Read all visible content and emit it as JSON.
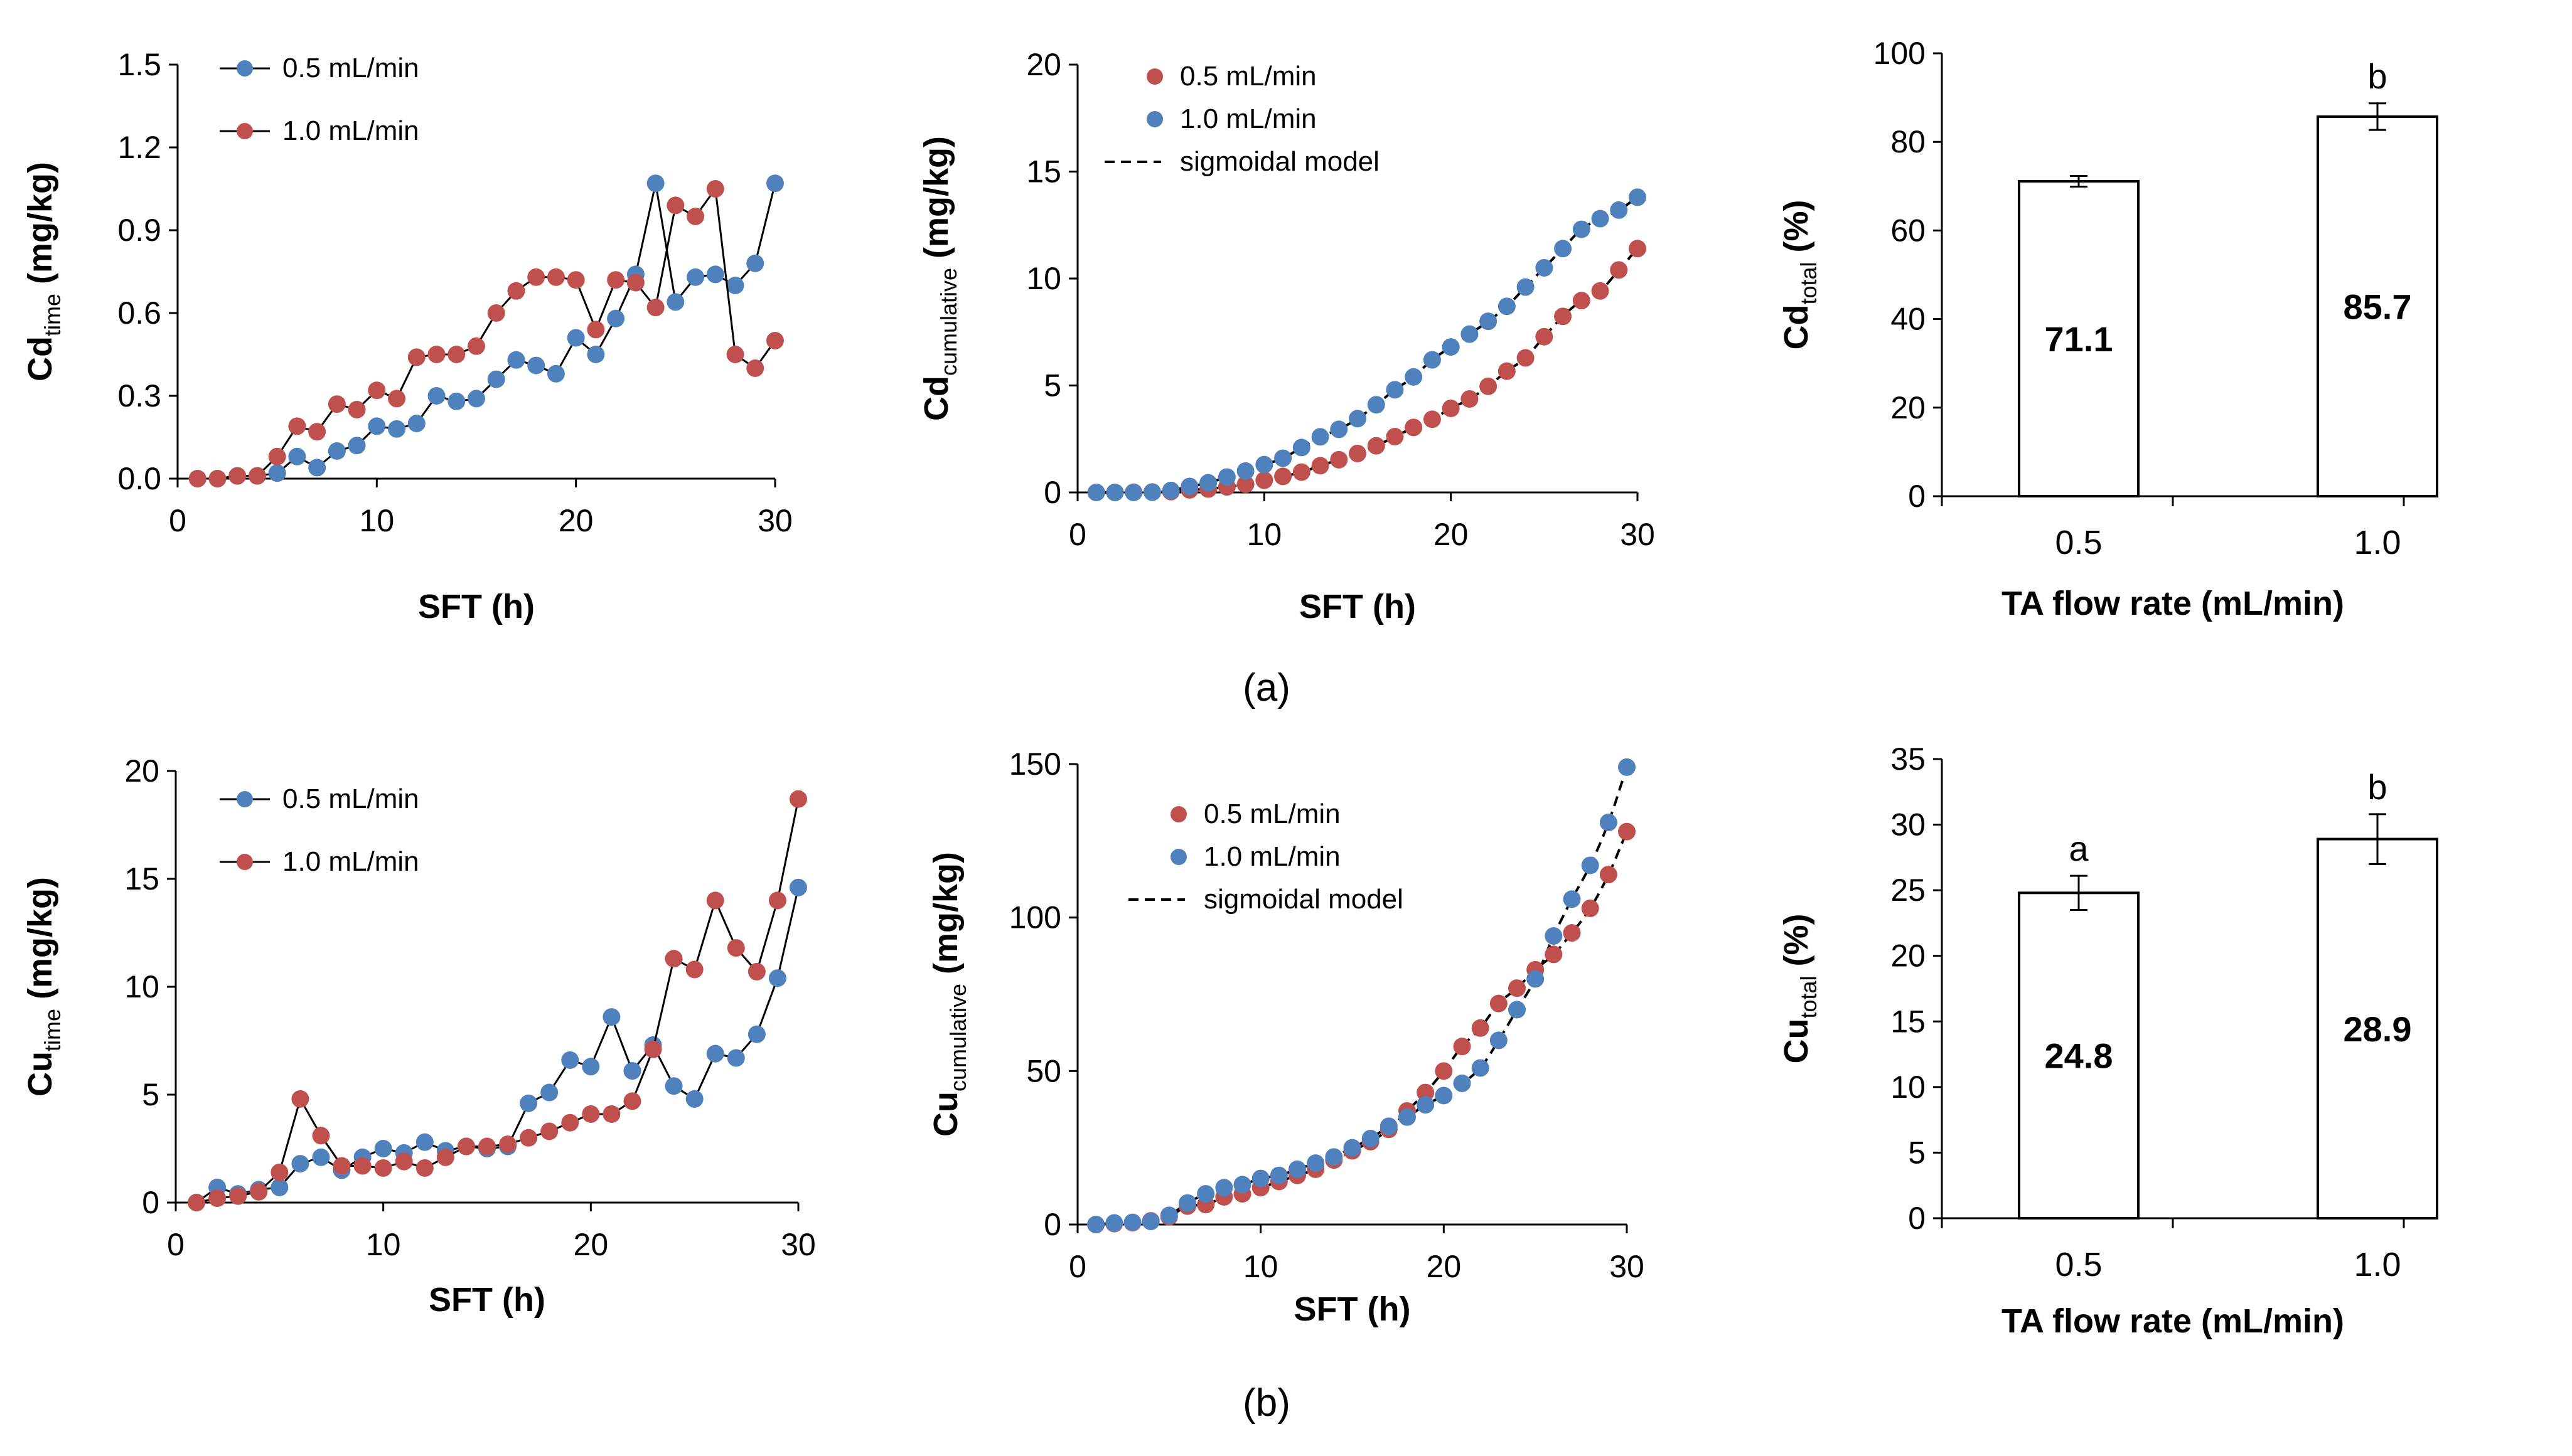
{
  "captions": {
    "a": "(a)",
    "b": "(b)"
  },
  "colors": {
    "s05": "#4F81BD",
    "s10": "#C0504D",
    "axis": "#000000",
    "bar": "#ffffff",
    "model": "#000000"
  },
  "chart_data": [
    {
      "id": "cd_time",
      "type": "line",
      "xlabel": "SFT (h)",
      "ylabel_main": "Cd",
      "ylabel_sub": "time",
      "ylabel_tail": " (mg/kg)",
      "xlim": [
        0,
        30
      ],
      "ylim": [
        0,
        1.5
      ],
      "xticks": [
        "0",
        "10",
        "20",
        "30"
      ],
      "yticks": [
        "0.0",
        "0.3",
        "0.6",
        "0.9",
        "1.2",
        "1.5"
      ],
      "legend": [
        "0.5 mL/min",
        "1.0 mL/min"
      ],
      "x": [
        1,
        2,
        3,
        4,
        5,
        6,
        7,
        8,
        9,
        10,
        11,
        12,
        13,
        14,
        15,
        16,
        17,
        18,
        19,
        20,
        21,
        22,
        23,
        24,
        25,
        26,
        27,
        28,
        29,
        30
      ],
      "series": [
        {
          "name": "0.5 mL/min",
          "color_key": "s05",
          "values": [
            0.0,
            0.0,
            0.01,
            0.01,
            0.02,
            0.08,
            0.04,
            0.1,
            0.12,
            0.19,
            0.18,
            0.2,
            0.3,
            0.28,
            0.29,
            0.36,
            0.43,
            0.41,
            0.38,
            0.51,
            0.45,
            0.58,
            0.74,
            1.07,
            0.64,
            0.73,
            0.74,
            0.7,
            0.78,
            1.07
          ]
        },
        {
          "name": "1.0 mL/min",
          "color_key": "s10",
          "values": [
            0.0,
            0.0,
            0.01,
            0.01,
            0.08,
            0.19,
            0.17,
            0.27,
            0.25,
            0.32,
            0.29,
            0.44,
            0.45,
            0.45,
            0.48,
            0.6,
            0.68,
            0.73,
            0.73,
            0.72,
            0.54,
            0.72,
            0.71,
            0.62,
            0.99,
            0.95,
            1.05,
            0.45,
            0.4,
            0.5
          ]
        }
      ]
    },
    {
      "id": "cd_cum",
      "type": "scatter",
      "xlabel": "SFT (h)",
      "ylabel_main": "Cd",
      "ylabel_sub": "cumulative",
      "ylabel_tail": " (mg/kg)",
      "xlim": [
        0,
        30
      ],
      "ylim": [
        0,
        20
      ],
      "xticks": [
        "0",
        "10",
        "20",
        "30"
      ],
      "yticks": [
        "0",
        "5",
        "10",
        "15",
        "20"
      ],
      "legend": [
        "0.5 mL/min",
        "1.0 mL/min",
        "sigmoidal model"
      ],
      "x": [
        1,
        2,
        3,
        4,
        5,
        6,
        7,
        8,
        9,
        10,
        11,
        12,
        13,
        14,
        15,
        16,
        17,
        18,
        19,
        20,
        21,
        22,
        23,
        24,
        25,
        26,
        27,
        28,
        29,
        30
      ],
      "series": [
        {
          "name": "0.5 mL/min",
          "color_key": "s10",
          "values": [
            0.0,
            0.0,
            0.01,
            0.02,
            0.04,
            0.12,
            0.16,
            0.26,
            0.38,
            0.57,
            0.75,
            0.95,
            1.25,
            1.53,
            1.82,
            2.18,
            2.61,
            3.04,
            3.42,
            3.93,
            4.37,
            4.96,
            5.67,
            6.29,
            7.28,
            8.23,
            8.97,
            9.42,
            10.4,
            11.4
          ]
        },
        {
          "name": "1.0 mL/min",
          "color_key": "s05",
          "values": [
            0.0,
            0.0,
            0.0,
            0.01,
            0.09,
            0.28,
            0.45,
            0.72,
            1.0,
            1.3,
            1.6,
            2.1,
            2.6,
            2.95,
            3.45,
            4.1,
            4.8,
            5.4,
            6.2,
            6.8,
            7.4,
            8.0,
            8.7,
            9.6,
            10.5,
            11.4,
            12.3,
            12.8,
            13.2,
            13.8
          ]
        }
      ]
    },
    {
      "id": "cd_total",
      "type": "bar",
      "xlabel": "TA flow rate (mL/min)",
      "ylabel_main": "Cd",
      "ylabel_sub": "total",
      "ylabel_tail": " (%)",
      "ylim": [
        0,
        100
      ],
      "yticks": [
        "0",
        "20",
        "40",
        "60",
        "80",
        "100"
      ],
      "categories": [
        "0.5",
        "1.0"
      ],
      "values": [
        71.1,
        85.7
      ],
      "value_labels": [
        "71.1",
        "85.7"
      ],
      "errors": [
        1.2,
        3.0
      ],
      "letters": [
        "",
        "b"
      ]
    },
    {
      "id": "cu_time",
      "type": "line",
      "xlabel": "SFT (h)",
      "ylabel_main": "Cu",
      "ylabel_sub": "time",
      "ylabel_tail": " (mg/kg)",
      "xlim": [
        0,
        30
      ],
      "ylim": [
        0,
        20
      ],
      "xticks": [
        "0",
        "10",
        "20",
        "30"
      ],
      "yticks": [
        "0",
        "5",
        "10",
        "15",
        "20"
      ],
      "legend": [
        "0.5 mL/min",
        "1.0 mL/min"
      ],
      "x": [
        1,
        2,
        3,
        4,
        5,
        6,
        7,
        8,
        9,
        10,
        11,
        12,
        13,
        14,
        15,
        16,
        17,
        18,
        19,
        20,
        21,
        22,
        23,
        24,
        25,
        26,
        27,
        28,
        29,
        30
      ],
      "series": [
        {
          "name": "0.5 mL/min",
          "color_key": "s05",
          "values": [
            0.0,
            0.7,
            0.4,
            0.6,
            0.7,
            1.8,
            2.1,
            1.5,
            2.1,
            2.5,
            2.3,
            2.8,
            2.4,
            2.6,
            2.5,
            2.6,
            4.6,
            5.1,
            6.6,
            6.3,
            8.6,
            6.1,
            7.3,
            5.4,
            4.8,
            6.9,
            6.7,
            7.8,
            10.4,
            14.6
          ]
        },
        {
          "name": "1.0 mL/min",
          "color_key": "s10",
          "values": [
            0.0,
            0.2,
            0.3,
            0.5,
            1.4,
            4.8,
            3.1,
            1.7,
            1.7,
            1.6,
            1.9,
            1.6,
            2.1,
            2.6,
            2.6,
            2.7,
            3.0,
            3.3,
            3.7,
            4.1,
            4.1,
            4.7,
            7.1,
            11.3,
            10.8,
            14.0,
            11.8,
            10.7,
            14.0,
            18.7
          ]
        }
      ]
    },
    {
      "id": "cu_cum",
      "type": "scatter",
      "xlabel": "SFT (h)",
      "ylabel_main": "Cu",
      "ylabel_sub": "cumulative",
      "ylabel_tail": " (mg/kg)",
      "xlim": [
        0,
        30
      ],
      "ylim": [
        0,
        150
      ],
      "xticks": [
        "0",
        "10",
        "20",
        "30"
      ],
      "yticks": [
        "0",
        "50",
        "100",
        "150"
      ],
      "legend": [
        "0.5 mL/min",
        "1.0 mL/min",
        "sigmoidal model"
      ],
      "x": [
        1,
        2,
        3,
        4,
        5,
        6,
        7,
        8,
        9,
        10,
        11,
        12,
        13,
        14,
        15,
        16,
        17,
        18,
        19,
        20,
        21,
        22,
        23,
        24,
        25,
        26,
        27,
        28,
        29,
        30
      ],
      "series": [
        {
          "name": "0.5 mL/min",
          "color_key": "s10",
          "values": [
            0,
            0.3,
            0.6,
            1.2,
            2.5,
            6,
            6.5,
            9,
            10,
            12,
            14,
            16,
            18,
            21,
            24,
            27,
            31,
            37,
            43,
            50,
            58,
            64,
            72,
            77,
            83,
            88,
            95,
            103,
            114,
            128
          ]
        },
        {
          "name": "1.0 mL/min",
          "color_key": "s05",
          "values": [
            0,
            0.5,
            0.7,
            1,
            3,
            7,
            10,
            12,
            13,
            15,
            16,
            18,
            20,
            22,
            25,
            28,
            32,
            35,
            39,
            42,
            46,
            51,
            60,
            70,
            80,
            94,
            106,
            117,
            131,
            149
          ]
        }
      ]
    },
    {
      "id": "cu_total",
      "type": "bar",
      "xlabel": "TA flow rate (mL/min)",
      "ylabel_main": "Cu",
      "ylabel_sub": "total",
      "ylabel_tail": " (%)",
      "ylim": [
        0,
        35
      ],
      "yticks": [
        "0",
        "5",
        "10",
        "15",
        "20",
        "25",
        "30",
        "35"
      ],
      "categories": [
        "0.5",
        "1.0"
      ],
      "values": [
        24.8,
        28.9
      ],
      "value_labels": [
        "24.8",
        "28.9"
      ],
      "errors": [
        1.3,
        1.9
      ],
      "letters": [
        "a",
        "b"
      ]
    }
  ]
}
